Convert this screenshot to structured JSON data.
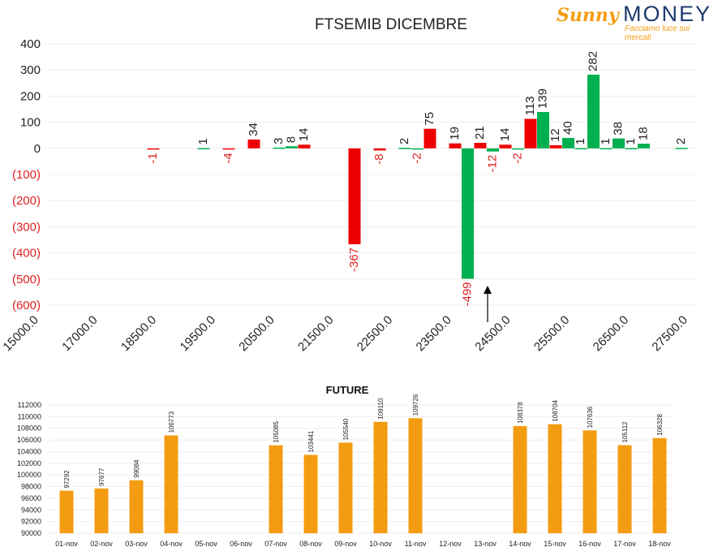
{
  "logo": {
    "sunny": "Sunny",
    "money": "MONEY",
    "tagline": "Facciamo luce sui mercati"
  },
  "chart_data": [
    {
      "type": "bar",
      "title": "FTSEMIB DICEMBRE",
      "x_ticks": [
        "15000.0",
        "17000.0",
        "18500.0",
        "19500.0",
        "20500.0",
        "21500.0",
        "22500.0",
        "23500.0",
        "24500.0",
        "25500.0",
        "26500.0",
        "27500.0"
      ],
      "y_ticks": [
        "400",
        "300",
        "200",
        "100",
        "0",
        "(100)",
        "(200)",
        "(300)",
        "(400)",
        "(500)",
        "(600)"
      ],
      "ylim": [
        -600,
        400
      ],
      "colors": {
        "positive_text": "#222222",
        "negative_text": "#e02020",
        "red": "#ee0000",
        "green": "#00b050"
      },
      "bars": [
        {
          "strike": 17000,
          "value": -1,
          "label": "-1",
          "color": "red"
        },
        {
          "strike": 18000,
          "value": 1,
          "label": "1",
          "color": "green"
        },
        {
          "strike": 18500,
          "value": -4,
          "label": "-4",
          "color": "red"
        },
        {
          "strike": 19000,
          "value": 34,
          "label": "34",
          "color": "red"
        },
        {
          "strike": 19500,
          "value": 3,
          "label": "3",
          "color": "green"
        },
        {
          "strike": 19750,
          "value": 8,
          "label": "8",
          "color": "green"
        },
        {
          "strike": 20000,
          "value": 14,
          "label": "14",
          "color": "red"
        },
        {
          "strike": 21000,
          "value": -367,
          "label": "-367",
          "color": "red"
        },
        {
          "strike": 21500,
          "value": -8,
          "label": "-8",
          "color": "red"
        },
        {
          "strike": 22000,
          "value": 2,
          "label": "2",
          "color": "green"
        },
        {
          "strike": 22250,
          "value": -2,
          "label": "-2",
          "color": "green"
        },
        {
          "strike": 22500,
          "value": 75,
          "label": "75",
          "color": "red"
        },
        {
          "strike": 23000,
          "value": 19,
          "label": "19",
          "color": "red"
        },
        {
          "strike": 23250,
          "value": -499,
          "label": "-499",
          "color": "green"
        },
        {
          "strike": 23500,
          "value": 21,
          "label": "21",
          "color": "red"
        },
        {
          "strike": 23750,
          "value": -12,
          "label": "-12",
          "color": "green"
        },
        {
          "strike": 24000,
          "value": 14,
          "label": "14",
          "color": "red"
        },
        {
          "strike": 24250,
          "value": -2,
          "label": "-2",
          "color": "green"
        },
        {
          "strike": 24500,
          "value": 113,
          "label": "113",
          "color": "red"
        },
        {
          "strike": 24750,
          "value": 139,
          "label": "139",
          "color": "green"
        },
        {
          "strike": 25000,
          "value": 12,
          "label": "12",
          "color": "red"
        },
        {
          "strike": 25250,
          "value": 40,
          "label": "40",
          "color": "green"
        },
        {
          "strike": 25500,
          "value": 1,
          "label": "1",
          "color": "green"
        },
        {
          "strike": 25750,
          "value": 282,
          "label": "282",
          "color": "green"
        },
        {
          "strike": 26000,
          "value": 1,
          "label": "1",
          "color": "green"
        },
        {
          "strike": 26250,
          "value": 38,
          "label": "38",
          "color": "green"
        },
        {
          "strike": 26500,
          "value": 1,
          "label": "1",
          "color": "green"
        },
        {
          "strike": 26750,
          "value": 18,
          "label": "18",
          "color": "green"
        },
        {
          "strike": 27500,
          "value": 2,
          "label": "2",
          "color": "green"
        }
      ],
      "annotation": {
        "type": "arrow",
        "points_up_from_below": true
      }
    },
    {
      "type": "bar",
      "title": "FUTURE",
      "categories": [
        "01-nov",
        "02-nov",
        "03-nov",
        "04-nov",
        "05-nov",
        "06-nov",
        "07-nov",
        "08-nov",
        "09-nov",
        "10-nov",
        "11-nov",
        "12-nov",
        "13-nov",
        "14-nov",
        "15-nov",
        "16-nov",
        "17-nov",
        "18-nov"
      ],
      "values": [
        97292,
        97677,
        99084,
        106773,
        null,
        null,
        105085,
        103441,
        105540,
        109110,
        109726,
        null,
        null,
        108378,
        108704,
        107636,
        105112,
        106328
      ],
      "y_ticks": [
        "112000",
        "110000",
        "108000",
        "106000",
        "104000",
        "102000",
        "100000",
        "98000",
        "96000",
        "94000",
        "92000",
        "90000"
      ],
      "ylim": [
        90000,
        112000
      ],
      "color": "#f39c12"
    }
  ]
}
